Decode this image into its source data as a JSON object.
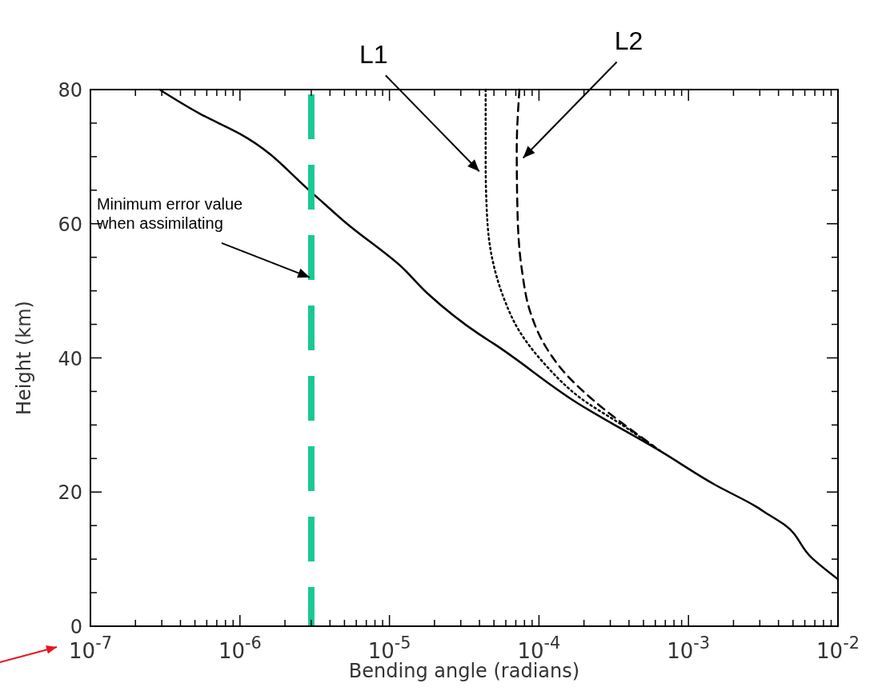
{
  "chart_data": {
    "type": "line",
    "xlabel": "Bending angle (radians)",
    "ylabel": "Height (km)",
    "log": "x",
    "xlim": [
      1e-07,
      0.01
    ],
    "ylim": [
      0,
      80
    ],
    "xticks": [
      {
        "value": 1e-07,
        "label": "10$^{-7}$"
      },
      {
        "value": 2e-07,
        "label": null
      },
      {
        "value": 3e-07,
        "label": null
      },
      {
        "value": 4e-07,
        "label": null
      },
      {
        "value": 5e-07,
        "label": null
      },
      {
        "value": 6e-07,
        "label": null
      },
      {
        "value": 7e-07,
        "label": null
      },
      {
        "value": 8e-07,
        "label": null
      },
      {
        "value": 9e-07,
        "label": null
      },
      {
        "value": 1e-06,
        "label": "10$^{-6}$"
      },
      {
        "value": 2e-06,
        "label": null
      },
      {
        "value": 3e-06,
        "label": null
      },
      {
        "value": 4e-06,
        "label": null
      },
      {
        "value": 5e-06,
        "label": null
      },
      {
        "value": 6e-06,
        "label": null
      },
      {
        "value": 7e-06,
        "label": null
      },
      {
        "value": 8e-06,
        "label": null
      },
      {
        "value": 9e-06,
        "label": null
      },
      {
        "value": 1e-05,
        "label": "10$^{-5}$"
      },
      {
        "value": 2e-05,
        "label": null
      },
      {
        "value": 3e-05,
        "label": null
      },
      {
        "value": 4e-05,
        "label": null
      },
      {
        "value": 5e-05,
        "label": null
      },
      {
        "value": 6e-05,
        "label": null
      },
      {
        "value": 7e-05,
        "label": null
      },
      {
        "value": 8e-05,
        "label": null
      },
      {
        "value": 9e-05,
        "label": null
      },
      {
        "value": 0.0001,
        "label": "10$^{-4}$"
      },
      {
        "value": 0.0002,
        "label": null
      },
      {
        "value": 0.0003,
        "label": null
      },
      {
        "value": 0.0004,
        "label": null
      },
      {
        "value": 0.0005,
        "label": null
      },
      {
        "value": 0.0006,
        "label": null
      },
      {
        "value": 0.0007,
        "label": null
      },
      {
        "value": 0.0008,
        "label": null
      },
      {
        "value": 0.0009,
        "label": null
      },
      {
        "value": 0.001,
        "label": "10$^{-3}$"
      },
      {
        "value": 0.002,
        "label": null
      },
      {
        "value": 0.003,
        "label": null
      },
      {
        "value": 0.004,
        "label": null
      },
      {
        "value": 0.005,
        "label": null
      },
      {
        "value": 0.006,
        "label": null
      },
      {
        "value": 0.007,
        "label": null
      },
      {
        "value": 0.008,
        "label": null
      },
      {
        "value": 0.009,
        "label": null
      },
      {
        "value": 0.01,
        "label": "10$^{-2}$"
      }
    ],
    "yticks": [
      0,
      {
        "value": 5,
        "label": null
      },
      {
        "value": 10,
        "label": null
      },
      {
        "value": 15,
        "label": null
      },
      20,
      {
        "value": 25,
        "label": null
      },
      {
        "value": 30,
        "label": null
      },
      {
        "value": 35,
        "label": null
      },
      40,
      {
        "value": 45,
        "label": null
      },
      {
        "value": 50,
        "label": null
      },
      {
        "value": 55,
        "label": null
      },
      60,
      {
        "value": 65,
        "label": null
      },
      {
        "value": 70,
        "label": null
      },
      {
        "value": 75,
        "label": null
      },
      80
    ],
    "grid": false,
    "series": [
      {
        "color": "#000000",
        "line_style": "solid",
        "x": [
          2.9e-07,
          5.5e-07,
          1e-06,
          3e-06,
          5.2e-06,
          1.2e-05,
          1.8e-05,
          4e-05,
          5e-05,
          0.00018,
          0.00066,
          0.0015,
          0.0028,
          0.0034,
          0.0044,
          0.0066,
          0.01
        ],
        "values": [
          80,
          76.3,
          73.4,
          64.7,
          60,
          53.6,
          49.6,
          43.5,
          42.1,
          33.3,
          26,
          21.1,
          17.9,
          16.7,
          15.1,
          10.3,
          7
        ]
      },
      {
        "name": "L1",
        "color": "#000000",
        "line_style": "dotted",
        "x": [
          4.4e-05,
          4.4e-05,
          4.5e-05,
          4.8e-05,
          5.8e-05,
          7.3e-05,
          0.00011,
          0.00019,
          0.00036,
          0.00066
        ],
        "values": [
          80,
          69,
          61,
          55.5,
          49,
          44.2,
          39,
          34,
          30,
          26
        ]
      },
      {
        "name": "L2",
        "color": "#000000",
        "line_style": "dashed",
        "x": [
          7.4e-05,
          7.1e-05,
          7.2e-05,
          7.7e-05,
          8.7e-05,
          0.00011,
          0.00016,
          0.00022,
          0.00059
        ],
        "values": [
          80,
          71,
          61,
          53,
          47,
          41.8,
          37,
          34.1,
          26.8
        ]
      }
    ],
    "ref_lines": [
      {
        "axis": "x",
        "value": 3e-06,
        "color": "#19c994",
        "line_style": "dashed"
      }
    ],
    "annotations": [
      {
        "text": "Minimum error value when assimilating",
        "x": 3e-06,
        "y": 52
      }
    ]
  }
}
